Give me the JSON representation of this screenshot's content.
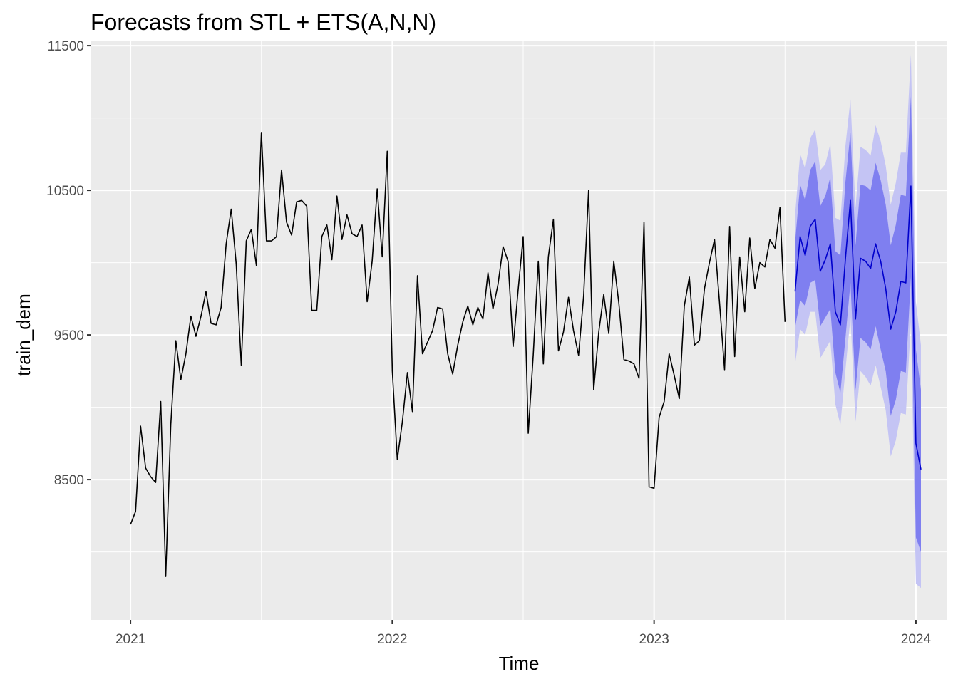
{
  "chart_data": {
    "type": "line",
    "title": "Forecasts from STL +  ETS(A,N,N)",
    "xlabel": "Time",
    "ylabel": "train_dem",
    "xlim": [
      2020.85,
      2024.12
    ],
    "ylim": [
      7530,
      11530
    ],
    "x_ticks": [
      2021,
      2022,
      2023,
      2024
    ],
    "x_tick_labels": [
      "2021",
      "2022",
      "2023",
      "2024"
    ],
    "y_ticks": [
      8500,
      9500,
      10500,
      11500
    ],
    "y_tick_labels": [
      "8500",
      "9500",
      "10500",
      "11500"
    ],
    "grid": true,
    "colors": {
      "panel_bg": "#ebebeb",
      "grid": "#ffffff",
      "history_line": "#000000",
      "forecast_line": "#0000cc",
      "pi80_fill": "#7f7ff0",
      "pi95_fill": "#c4c4f4",
      "tick_text": "#4d4d4d",
      "tick_mark": "#333333"
    },
    "series": [
      {
        "x_start": 2021.0,
        "x_step": 0.0192308,
        "values": [
          8190,
          8280,
          8870,
          8580,
          8520,
          8480,
          9040,
          7830,
          8880,
          9460,
          9190,
          9370,
          9630,
          9490,
          9630,
          9800,
          9580,
          9570,
          9690,
          10130,
          10370,
          9990,
          9290,
          10150,
          10230,
          9980,
          10900,
          10150,
          10150,
          10180,
          10640,
          10280,
          10190,
          10420,
          10430,
          10390,
          9670,
          9670,
          10180,
          10260,
          10020,
          10460,
          10160,
          10330,
          10200,
          10180,
          10260,
          9730,
          10010,
          10510,
          10040,
          10770,
          9250,
          8640,
          8900,
          9240,
          8970,
          9910,
          9370,
          9450,
          9530,
          9690,
          9680,
          9370,
          9230,
          9430,
          9590,
          9700,
          9570,
          9690,
          9610,
          9930,
          9680,
          9850,
          10110,
          10010,
          9420,
          9810,
          10180,
          8820,
          9360,
          10010,
          9300,
          10040,
          10300,
          9390,
          9520,
          9760,
          9530,
          9360,
          9770,
          10500,
          9120,
          9520,
          9780,
          9510,
          10010,
          9720,
          9330,
          9320,
          9300,
          9200,
          10280,
          8450,
          8440,
          8930,
          9040,
          9370,
          9220,
          9060,
          9700,
          9900,
          9430,
          9460,
          9820,
          10000,
          10160,
          9720,
          9260,
          10250,
          9350,
          10040,
          9660,
          10170,
          9820,
          10000,
          9970,
          10160,
          10100,
          10380,
          9590
        ]
      },
      {
        "x_start": 2023.5385,
        "x_step": 0.0192308,
        "values": [
          9800,
          10180,
          10050,
          10250,
          10300,
          9940,
          10020,
          10130,
          9660,
          9570,
          10030,
          10430,
          9610,
          10030,
          10010,
          9960,
          10130,
          10010,
          9820,
          9540,
          9660,
          9870,
          9860,
          10530,
          8750,
          8570
        ],
        "pi80_lower": [
          9550,
          9740,
          9700,
          9860,
          9880,
          9560,
          9620,
          9680,
          9240,
          9100,
          9480,
          9860,
          9120,
          9480,
          9450,
          9400,
          9560,
          9400,
          9250,
          8940,
          9050,
          9250,
          9240,
          9900,
          8100,
          8000
        ],
        "pi80_upper": [
          10140,
          10540,
          10430,
          10640,
          10700,
          10390,
          10460,
          10590,
          10080,
          10050,
          10560,
          10900,
          10120,
          10540,
          10530,
          10500,
          10690,
          10570,
          10400,
          10120,
          10260,
          10470,
          10460,
          11150,
          9400,
          9120
        ],
        "pi95_lower": [
          9300,
          9540,
          9500,
          9660,
          9660,
          9340,
          9400,
          9460,
          9020,
          8880,
          9260,
          9620,
          8900,
          9250,
          9210,
          9150,
          9290,
          9140,
          8980,
          8660,
          8770,
          8960,
          8950,
          9590,
          7780,
          7750
        ],
        "pi95_upper": [
          10330,
          10750,
          10650,
          10860,
          10920,
          10640,
          10680,
          10820,
          10310,
          10290,
          10810,
          11130,
          10380,
          10800,
          10780,
          10740,
          10950,
          10840,
          10670,
          10400,
          10550,
          10760,
          10760,
          11440,
          9730,
          9430
        ]
      }
    ]
  }
}
